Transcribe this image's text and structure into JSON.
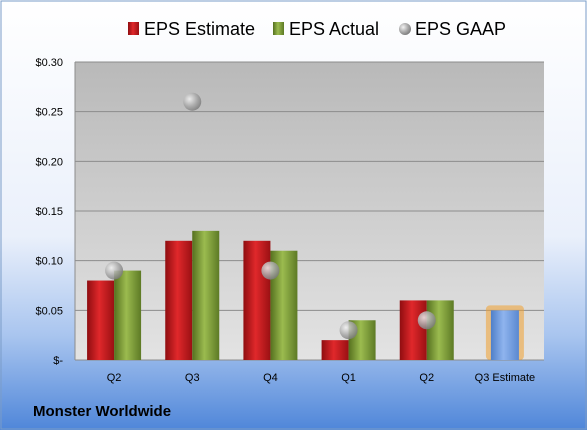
{
  "company_name": "Monster Worldwide",
  "chart_data": {
    "type": "bar",
    "categories": [
      "Q2",
      "Q3",
      "Q4",
      "Q1",
      "Q2",
      "Q3 Estimate"
    ],
    "series": [
      {
        "name": "EPS Estimate",
        "values": [
          0.08,
          0.12,
          0.12,
          0.02,
          0.06,
          null
        ]
      },
      {
        "name": "EPS Actual",
        "values": [
          0.09,
          0.13,
          0.11,
          0.04,
          0.06,
          null
        ]
      },
      {
        "name": "EPS GAAP",
        "values": [
          0.09,
          0.26,
          0.09,
          0.03,
          0.04,
          null
        ]
      }
    ],
    "estimate": {
      "category": "Q3 Estimate",
      "value": 0.05
    },
    "yticks": [
      0,
      0.05,
      0.1,
      0.15,
      0.2,
      0.25,
      0.3
    ],
    "ytick_labels": [
      "$-",
      "$0.05",
      "$0.10",
      "$0.15",
      "$0.20",
      "$0.25",
      "$0.30"
    ],
    "ylim": [
      0,
      0.3
    ],
    "grid": true,
    "legend_placement": "top",
    "colors": {
      "estimate": "#c0191c",
      "actual": "#7a9a35",
      "gaap": "#a8a8a8",
      "estimate_bar": "#6f9ee0",
      "estimate_glow": "#f0a030"
    }
  }
}
